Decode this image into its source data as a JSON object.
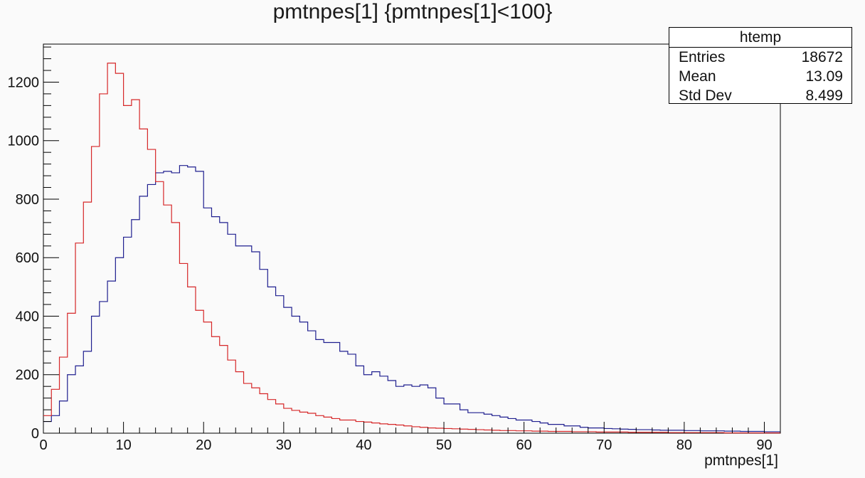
{
  "chart_data": {
    "type": "histogram",
    "title": "pmtnpes[1] {pmtnpes[1]<100}",
    "xlabel": "pmtnpes[1]",
    "ylabel": "",
    "xlim": [
      0,
      92
    ],
    "ylim": [
      0,
      1330
    ],
    "bin_width": 1,
    "x_ticks": [
      0,
      10,
      20,
      30,
      40,
      50,
      60,
      70,
      80,
      90
    ],
    "y_ticks": [
      0,
      200,
      400,
      600,
      800,
      1000,
      1200
    ],
    "stats": {
      "name": "htemp",
      "rows": [
        {
          "label": "Entries",
          "value": "18672"
        },
        {
          "label": "Mean",
          "value": "13.09"
        },
        {
          "label": "Std Dev",
          "value": "8.499"
        }
      ]
    },
    "series": [
      {
        "color": "#1f1f8f",
        "bin_edges_start": 0,
        "values": [
          40,
          60,
          110,
          200,
          230,
          280,
          400,
          450,
          520,
          600,
          670,
          730,
          810,
          850,
          890,
          895,
          890,
          915,
          910,
          895,
          770,
          740,
          720,
          680,
          640,
          640,
          620,
          560,
          500,
          470,
          430,
          400,
          380,
          350,
          320,
          310,
          310,
          280,
          270,
          230,
          200,
          210,
          195,
          180,
          160,
          165,
          160,
          165,
          155,
          120,
          100,
          100,
          80,
          70,
          70,
          65,
          60,
          55,
          50,
          45,
          45,
          40,
          35,
          30,
          30,
          25,
          25,
          20,
          18,
          18,
          16,
          15,
          14,
          13,
          12,
          12,
          11,
          10,
          10,
          10,
          9,
          9,
          8,
          8,
          8,
          7,
          7,
          6,
          6,
          6,
          5,
          5
        ]
      },
      {
        "color": "#d62728",
        "bin_edges_start": 0,
        "values": [
          60,
          150,
          260,
          410,
          650,
          790,
          980,
          1160,
          1265,
          1230,
          1120,
          1140,
          1040,
          970,
          860,
          780,
          720,
          580,
          500,
          420,
          380,
          330,
          300,
          250,
          210,
          170,
          155,
          135,
          115,
          100,
          85,
          78,
          72,
          68,
          60,
          55,
          50,
          45,
          45,
          40,
          38,
          35,
          32,
          30,
          28,
          25,
          22,
          20,
          18,
          17,
          16,
          15,
          14,
          13,
          12,
          11,
          10,
          9,
          9,
          8,
          8,
          7,
          7,
          6,
          6,
          6,
          5,
          5,
          5,
          4,
          4,
          4,
          4,
          3,
          3,
          3,
          3,
          3,
          2,
          2,
          2,
          2,
          2,
          2,
          2,
          1,
          1,
          1,
          1,
          1,
          1,
          1
        ]
      }
    ]
  }
}
